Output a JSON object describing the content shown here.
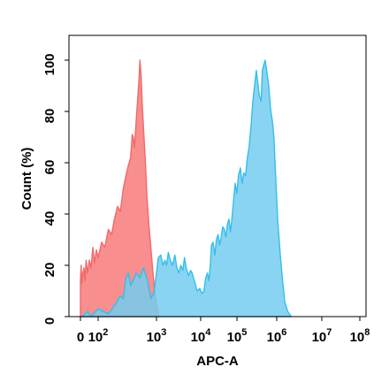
{
  "chart_data": {
    "type": "area",
    "title": "",
    "xlabel": "APC-A",
    "ylabel": "Count (%)",
    "x_scale": "log",
    "xlim": [
      0,
      100000000
    ],
    "ylim": [
      0,
      100
    ],
    "x_ticks": [
      {
        "value": 0,
        "base": "0",
        "exp": ""
      },
      {
        "value": 100,
        "base": "10",
        "exp": "2"
      },
      {
        "value": 1000,
        "base": "10",
        "exp": "3"
      },
      {
        "value": 10000,
        "base": "10",
        "exp": "4"
      },
      {
        "value": 100000,
        "base": "10",
        "exp": "5"
      },
      {
        "value": 1000000,
        "base": "10",
        "exp": "6"
      },
      {
        "value": 10000000,
        "base": "10",
        "exp": "7"
      },
      {
        "value": 100000000,
        "base": "10",
        "exp": "8"
      }
    ],
    "y_ticks": [
      0,
      20,
      40,
      60,
      80,
      100
    ],
    "grid": false,
    "legend": "none",
    "series": [
      {
        "color": "#f06a6a",
        "fill": "#f77b7b",
        "points": [
          [
            0,
            0
          ],
          [
            0,
            14
          ],
          [
            4,
            20
          ],
          [
            8,
            13
          ],
          [
            14,
            17
          ],
          [
            20,
            19
          ],
          [
            26,
            14
          ],
          [
            32,
            22
          ],
          [
            40,
            17
          ],
          [
            50,
            22
          ],
          [
            60,
            19
          ],
          [
            70,
            27
          ],
          [
            80,
            21
          ],
          [
            90,
            26
          ],
          [
            100,
            23
          ],
          [
            115,
            29
          ],
          [
            130,
            27
          ],
          [
            150,
            34
          ],
          [
            170,
            32
          ],
          [
            190,
            38
          ],
          [
            215,
            43
          ],
          [
            240,
            41
          ],
          [
            270,
            50
          ],
          [
            300,
            55
          ],
          [
            330,
            59
          ],
          [
            360,
            62
          ],
          [
            385,
            71
          ],
          [
            400,
            70
          ],
          [
            420,
            66
          ],
          [
            445,
            75
          ],
          [
            470,
            83
          ],
          [
            500,
            92
          ],
          [
            520,
            100
          ],
          [
            545,
            94
          ],
          [
            570,
            83
          ],
          [
            600,
            73
          ],
          [
            640,
            62
          ],
          [
            690,
            46
          ],
          [
            740,
            36
          ],
          [
            800,
            27
          ],
          [
            870,
            17
          ],
          [
            950,
            8
          ],
          [
            1050,
            3
          ],
          [
            1150,
            0
          ]
        ]
      },
      {
        "color": "#37bde8",
        "fill": "#74ccf0",
        "points": [
          [
            0,
            0
          ],
          [
            10,
            0
          ],
          [
            40,
            2
          ],
          [
            60,
            0
          ],
          [
            100,
            3
          ],
          [
            150,
            1
          ],
          [
            200,
            5
          ],
          [
            240,
            8
          ],
          [
            270,
            7
          ],
          [
            300,
            15
          ],
          [
            330,
            17
          ],
          [
            360,
            12
          ],
          [
            400,
            14
          ],
          [
            450,
            17
          ],
          [
            520,
            15
          ],
          [
            600,
            19
          ],
          [
            700,
            14
          ],
          [
            800,
            7
          ],
          [
            900,
            9
          ],
          [
            1000,
            17
          ],
          [
            1100,
            23
          ],
          [
            1250,
            24
          ],
          [
            1400,
            20
          ],
          [
            1550,
            22
          ],
          [
            1700,
            20
          ],
          [
            1850,
            25
          ],
          [
            2050,
            22
          ],
          [
            2300,
            20
          ],
          [
            2600,
            24
          ],
          [
            2900,
            19
          ],
          [
            3200,
            17
          ],
          [
            3550,
            20
          ],
          [
            3950,
            18
          ],
          [
            4300,
            23
          ],
          [
            4700,
            19
          ],
          [
            5300,
            16
          ],
          [
            5900,
            18
          ],
          [
            6400,
            17
          ],
          [
            7200,
            14
          ],
          [
            8300,
            10
          ],
          [
            9500,
            11
          ],
          [
            10800,
            9
          ],
          [
            12300,
            10
          ],
          [
            13700,
            15
          ],
          [
            15300,
            17
          ],
          [
            16800,
            14
          ],
          [
            18400,
            20
          ],
          [
            19900,
            28
          ],
          [
            22000,
            29
          ],
          [
            24500,
            24
          ],
          [
            27200,
            30
          ],
          [
            30100,
            32
          ],
          [
            33100,
            28
          ],
          [
            36700,
            31
          ],
          [
            40500,
            35
          ],
          [
            44800,
            34
          ],
          [
            49500,
            31
          ],
          [
            54600,
            36
          ],
          [
            60400,
            38
          ],
          [
            66300,
            33
          ],
          [
            73700,
            39
          ],
          [
            81500,
            46
          ],
          [
            89500,
            52
          ],
          [
            99000,
            48
          ],
          [
            109300,
            55
          ],
          [
            122000,
            58
          ],
          [
            135000,
            52
          ],
          [
            149000,
            56
          ],
          [
            165000,
            55
          ],
          [
            183000,
            62
          ],
          [
            202000,
            66
          ],
          [
            228000,
            75
          ],
          [
            251000,
            84
          ],
          [
            277000,
            90
          ],
          [
            307000,
            96
          ],
          [
            330000,
            92
          ],
          [
            367000,
            86
          ],
          [
            405000,
            84
          ],
          [
            435000,
            96
          ],
          [
            470000,
            98
          ],
          [
            510000,
            100
          ],
          [
            560000,
            96
          ],
          [
            630000,
            90
          ],
          [
            700000,
            81
          ],
          [
            780000,
            76
          ],
          [
            850000,
            70
          ],
          [
            950000,
            53
          ],
          [
            1050000,
            38
          ],
          [
            1200000,
            24
          ],
          [
            1350000,
            14
          ],
          [
            1500000,
            6
          ],
          [
            1750000,
            2
          ],
          [
            2100000,
            0
          ]
        ]
      }
    ]
  }
}
